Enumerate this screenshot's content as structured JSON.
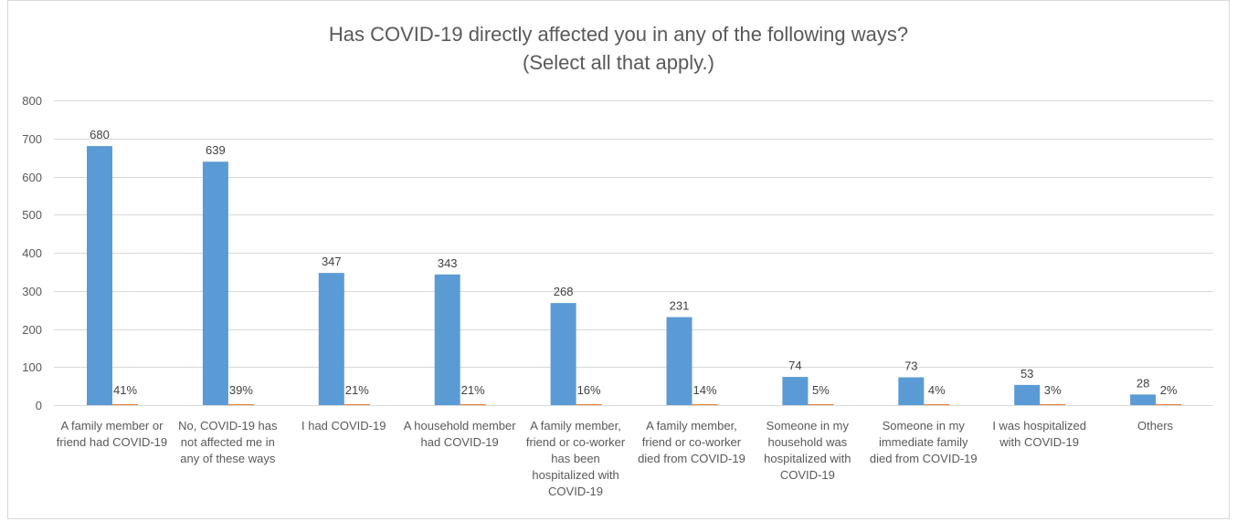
{
  "chart_data": {
    "type": "bar",
    "title_lines": [
      "Has COVID-19 directly affected you in any of the following ways?",
      "(Select all that apply.)"
    ],
    "categories": [
      "A family member or friend had COVID-19",
      "No, COVID-19 has not affected me in any of these ways",
      "I had COVID-19",
      "A household member had COVID-19",
      "A family member, friend or co-worker has been hospitalized with COVID-19",
      "A family member, friend or co-worker died from COVID-19",
      "Someone in my household was hospitalized with COVID-19",
      "Someone in my immediate family died from COVID-19",
      "I was hospitalized with COVID-19",
      "Others"
    ],
    "series": [
      {
        "values": [
          680,
          639,
          347,
          343,
          268,
          231,
          74,
          73,
          53,
          28
        ],
        "labels": [
          "680",
          "639",
          "347",
          "343",
          "268",
          "231",
          "74",
          "73",
          "53",
          "28"
        ],
        "color": "#5b9bd5"
      },
      {
        "values": [
          0.41,
          0.39,
          0.21,
          0.21,
          0.16,
          0.14,
          0.05,
          0.04,
          0.03,
          0.02
        ],
        "labels": [
          "41%",
          "39%",
          "21%",
          "21%",
          "16%",
          "14%",
          "5%",
          "4%",
          "3%",
          "2%"
        ],
        "color": "#ed7d31"
      }
    ],
    "ylim": [
      0,
      800
    ],
    "yticks": [
      "0",
      "100",
      "200",
      "300",
      "400",
      "500",
      "600",
      "700",
      "800"
    ],
    "grid": true,
    "xlabel": "",
    "ylabel": ""
  }
}
